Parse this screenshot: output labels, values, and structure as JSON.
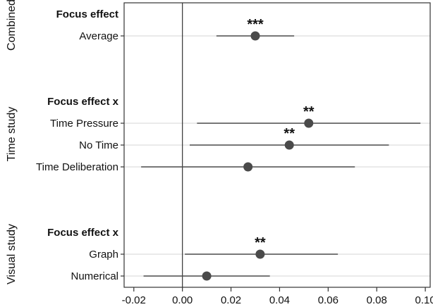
{
  "chart_data": {
    "type": "scatter",
    "subtype": "coefficient-plot",
    "x_axis": {
      "ticks": [
        -0.02,
        0.0,
        0.02,
        0.04,
        0.06,
        0.08,
        0.1
      ],
      "tick_labels": [
        "-0.02",
        "0.00",
        "0.02",
        "0.04",
        "0.06",
        "0.08",
        "0.10"
      ],
      "xlim": [
        -0.024,
        0.102
      ]
    },
    "reference_line_x": 0.0,
    "grid": "horizontal lines at estimates",
    "groups": [
      {
        "name": "Combined",
        "header": "Focus effect",
        "rows": [
          {
            "label": "Average",
            "estimate": 0.03,
            "ci_low": 0.014,
            "ci_high": 0.046,
            "stars": "***"
          }
        ]
      },
      {
        "name": "Time study",
        "header": "Focus effect x",
        "rows": [
          {
            "label": "Time Pressure",
            "estimate": 0.052,
            "ci_low": 0.006,
            "ci_high": 0.098,
            "stars": "**"
          },
          {
            "label": "No Time",
            "estimate": 0.044,
            "ci_low": 0.003,
            "ci_high": 0.085,
            "stars": "**"
          },
          {
            "label": "Time Deliberation",
            "estimate": 0.027,
            "ci_low": -0.017,
            "ci_high": 0.071,
            "stars": ""
          }
        ]
      },
      {
        "name": "Visual study",
        "header": "Focus effect x",
        "rows": [
          {
            "label": "Graph",
            "estimate": 0.032,
            "ci_low": 0.001,
            "ci_high": 0.064,
            "stars": "**"
          },
          {
            "label": "Numerical",
            "estimate": 0.01,
            "ci_low": -0.016,
            "ci_high": 0.036,
            "stars": ""
          }
        ]
      }
    ],
    "colors": {
      "point": "#4a4a4a",
      "ci": "#4a4a4a",
      "gridline": "#d4d4d4",
      "frame": "#333333"
    }
  }
}
